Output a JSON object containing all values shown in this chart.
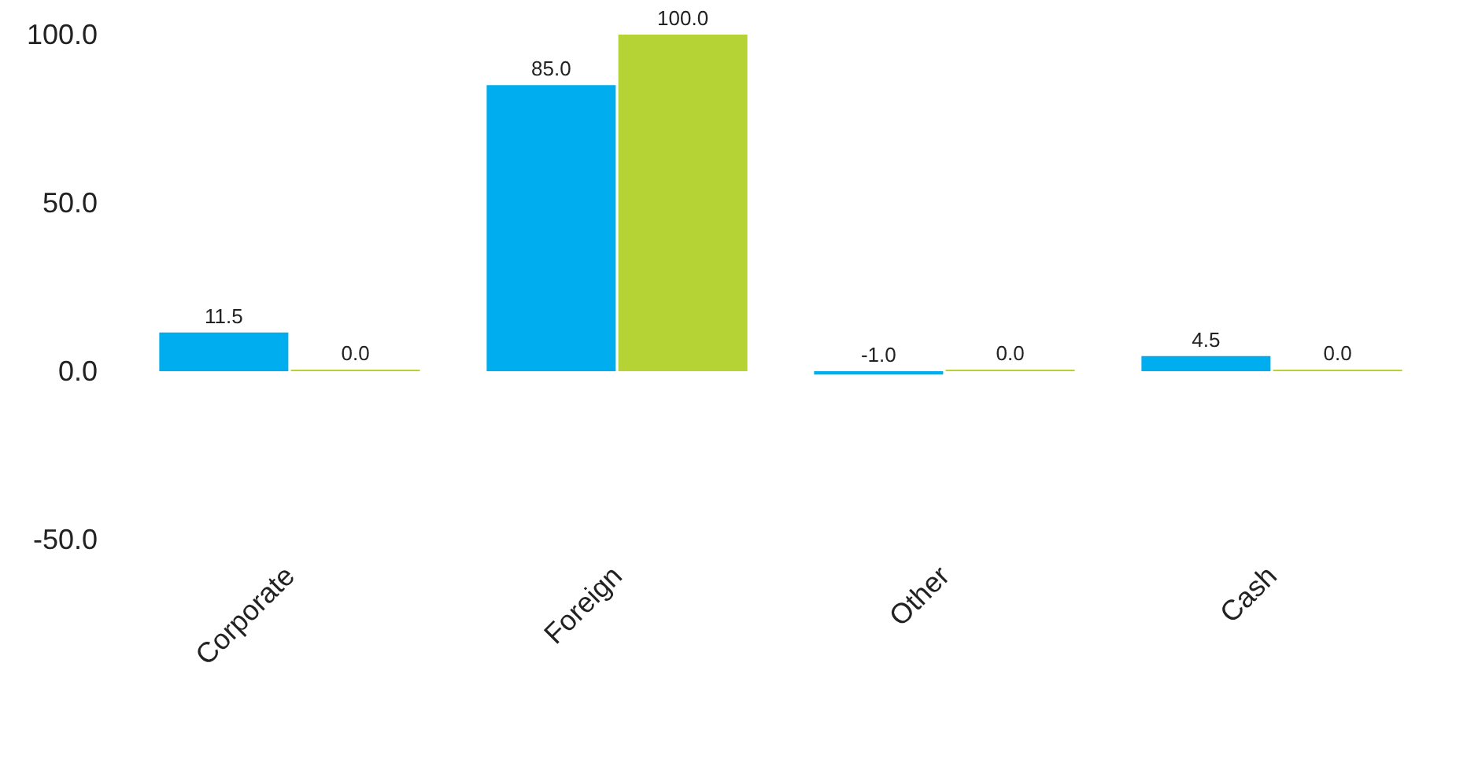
{
  "chart_data": {
    "type": "bar",
    "categories": [
      "Corporate",
      "Foreign",
      "Other",
      "Cash"
    ],
    "series": [
      {
        "color": "#00aeef",
        "values": [
          11.5,
          85.0,
          -1.0,
          4.5
        ],
        "value_labels": [
          "11.5",
          "85.0",
          "-1.0",
          "4.5"
        ]
      },
      {
        "color": "#b5d334",
        "values": [
          0.0,
          100.0,
          0.0,
          0.0
        ],
        "value_labels": [
          "0.0",
          "100.0",
          "0.0",
          "0.0"
        ]
      }
    ],
    "ylim": [
      -50,
      100
    ],
    "yticks": [
      {
        "value": -50,
        "label": "-50.0"
      },
      {
        "value": 0,
        "label": "0.0"
      },
      {
        "value": 50,
        "label": "50.0"
      },
      {
        "value": 100,
        "label": "100.0"
      }
    ],
    "grid": false
  }
}
